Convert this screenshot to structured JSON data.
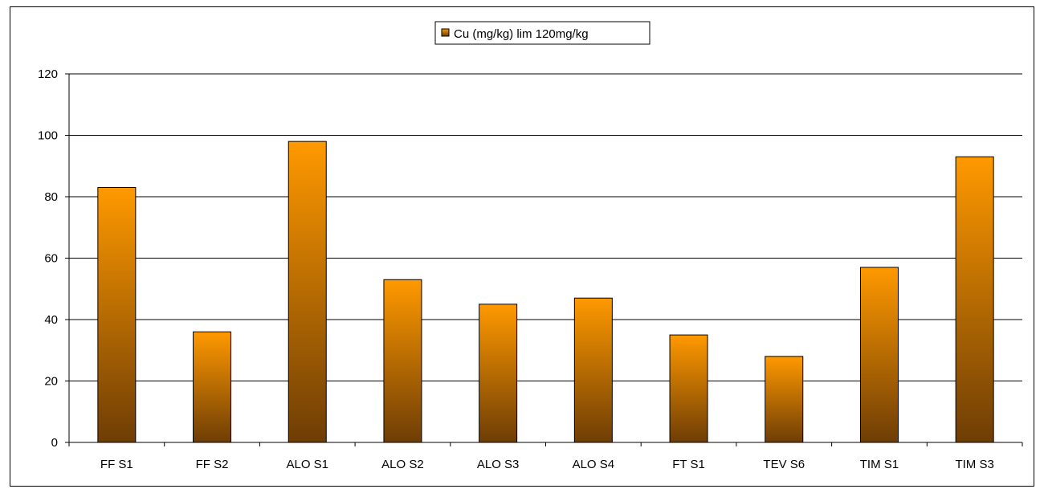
{
  "chart_data": {
    "type": "bar",
    "categories": [
      "FF S1",
      "FF S2",
      "ALO S1",
      "ALO S2",
      "ALO S3",
      "ALO S4",
      "FT S1",
      "TEV S6",
      "TIM S1",
      "TIM S3"
    ],
    "series": [
      {
        "name": "Cu (mg/kg) lim 120mg/kg",
        "values": [
          83,
          36,
          98,
          53,
          45,
          47,
          35,
          28,
          57,
          93
        ],
        "color_top": "#ff9900",
        "color_bottom": "#6e3d05"
      }
    ],
    "yticks": [
      0,
      20,
      40,
      60,
      80,
      100,
      120
    ],
    "ylim": [
      0,
      120
    ],
    "grid": true,
    "legend_position": "top-center",
    "title": "",
    "xlabel": "",
    "ylabel": ""
  }
}
